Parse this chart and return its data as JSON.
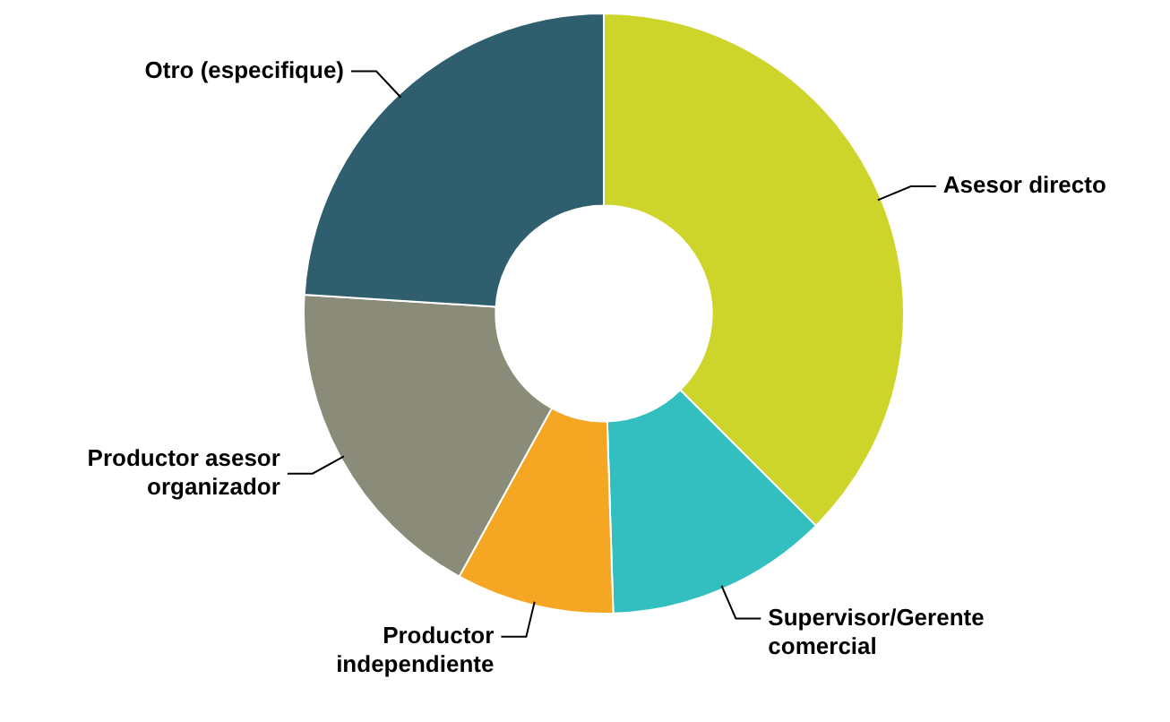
{
  "chart_data": {
    "type": "donut",
    "categories": [
      "Asesor directo",
      "Supervisor/Gerente comercial",
      "Productor independiente",
      "Productor asesor organizador",
      "Otro (especifique)"
    ],
    "values": [
      37.5,
      12,
      8.5,
      18,
      24
    ],
    "colors": [
      "#cdd52b",
      "#33bfbf",
      "#f5a623",
      "#8b8b7a",
      "#2f5f6e"
    ],
    "legend": false
  }
}
